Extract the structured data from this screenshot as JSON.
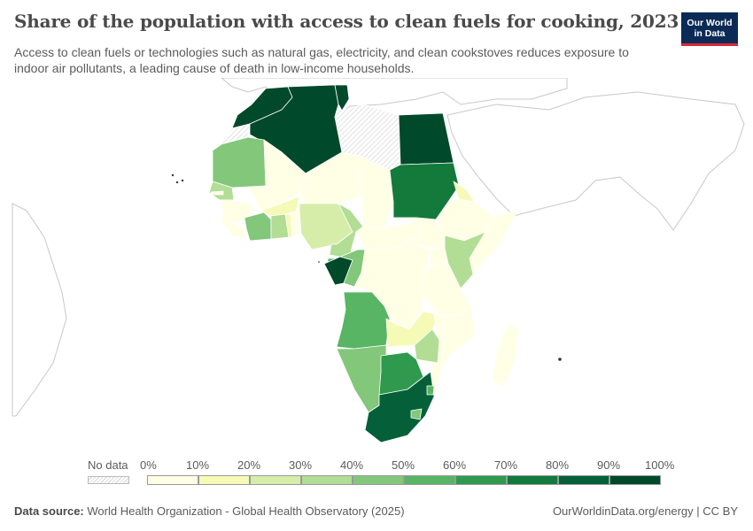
{
  "header": {
    "title": "Share of the population with access to clean fuels for cooking, 2023",
    "subtitle": "Access to clean fuels or technologies such as natural gas, electricity, and clean cookstoves reduces exposure to indoor air pollutants, a leading cause of death in low-income households.",
    "logo_line1": "Our World",
    "logo_line2": "in Data"
  },
  "legend": {
    "nodata_label": "No data",
    "ticks": [
      "0%",
      "10%",
      "20%",
      "30%",
      "40%",
      "50%",
      "60%",
      "70%",
      "80%",
      "90%",
      "100%"
    ],
    "colors": [
      "#ffffe6",
      "#f5fab6",
      "#d6edaa",
      "#b2dd94",
      "#82c77a",
      "#57b563",
      "#2f9a4d",
      "#137a3b",
      "#05603a",
      "#00492a"
    ]
  },
  "footer": {
    "source_label": "Data source:",
    "source_text": "World Health Organization - Global Health Observatory (2025)",
    "link_text": "OurWorldinData.org/energy | CC BY"
  },
  "map_data": {
    "unit": "%",
    "countries": [
      {
        "name": "Morocco",
        "value": 98
      },
      {
        "name": "Algeria",
        "value": 99
      },
      {
        "name": "Tunisia",
        "value": 99
      },
      {
        "name": "Libya",
        "value": null
      },
      {
        "name": "Egypt",
        "value": 99
      },
      {
        "name": "Western Sahara",
        "value": null
      },
      {
        "name": "Mauritania",
        "value": 45
      },
      {
        "name": "Mali",
        "value": 2
      },
      {
        "name": "Niger",
        "value": 3
      },
      {
        "name": "Chad",
        "value": 6
      },
      {
        "name": "Sudan",
        "value": 75
      },
      {
        "name": "Eritrea",
        "value": 12
      },
      {
        "name": "Ethiopia",
        "value": 8
      },
      {
        "name": "Somalia",
        "value": 4
      },
      {
        "name": "Senegal",
        "value": 30
      },
      {
        "name": "Gambia",
        "value": 4
      },
      {
        "name": "Guinea",
        "value": 2
      },
      {
        "name": "Sierra Leone",
        "value": 1
      },
      {
        "name": "Liberia",
        "value": 1
      },
      {
        "name": "Cote d'Ivoire",
        "value": 45
      },
      {
        "name": "Burkina Faso",
        "value": 15
      },
      {
        "name": "Ghana",
        "value": 35
      },
      {
        "name": "Togo",
        "value": 10
      },
      {
        "name": "Benin",
        "value": 8
      },
      {
        "name": "Nigeria",
        "value": 25
      },
      {
        "name": "Cameroon",
        "value": 35
      },
      {
        "name": "Central African Republic",
        "value": 1
      },
      {
        "name": "South Sudan",
        "value": 1
      },
      {
        "name": "Equatorial Guinea",
        "value": 50
      },
      {
        "name": "Gabon",
        "value": 90
      },
      {
        "name": "Congo",
        "value": 45
      },
      {
        "name": "Democratic Republic of Congo",
        "value": 4
      },
      {
        "name": "Uganda",
        "value": 1
      },
      {
        "name": "Kenya",
        "value": 35
      },
      {
        "name": "Rwanda",
        "value": 7
      },
      {
        "name": "Burundi",
        "value": 1
      },
      {
        "name": "Tanzania",
        "value": 9
      },
      {
        "name": "Angola",
        "value": 50
      },
      {
        "name": "Zambia",
        "value": 10
      },
      {
        "name": "Malawi",
        "value": 1
      },
      {
        "name": "Mozambique",
        "value": 6
      },
      {
        "name": "Zimbabwe",
        "value": 30
      },
      {
        "name": "Namibia",
        "value": 48
      },
      {
        "name": "Botswana",
        "value": 67
      },
      {
        "name": "South Africa",
        "value": 89
      },
      {
        "name": "Lesotho",
        "value": 45
      },
      {
        "name": "Eswatini",
        "value": 55
      },
      {
        "name": "Madagascar",
        "value": 2
      }
    ]
  }
}
